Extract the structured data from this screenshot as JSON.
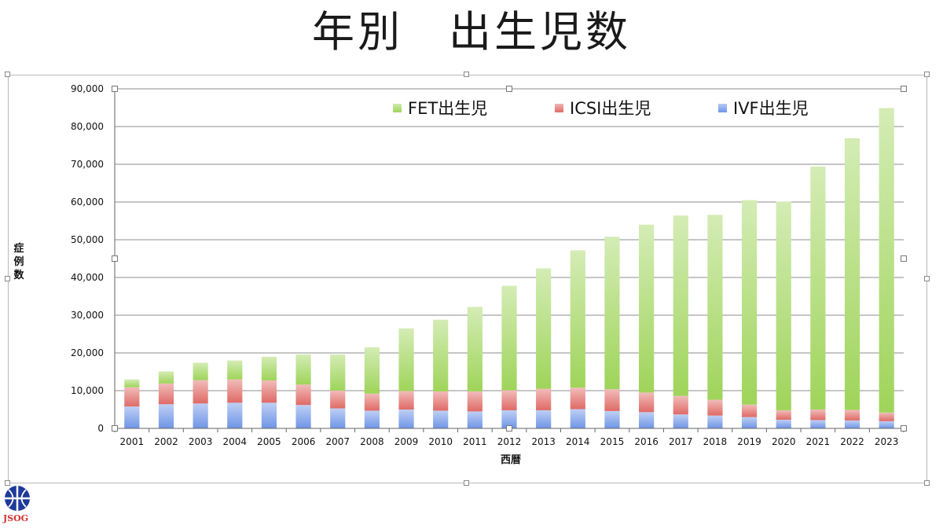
{
  "slide": {
    "title": "年別　出生児数"
  },
  "logo": {
    "text": "JSOG",
    "text_color": "#d32f2f",
    "mark_color": "#1e3a9a"
  },
  "chart_data": {
    "type": "bar",
    "stacked": true,
    "title": "",
    "xlabel": "西暦",
    "ylabel": "症例数",
    "ylim": [
      0,
      90000
    ],
    "yticks": [
      "0",
      "10,000",
      "20,000",
      "30,000",
      "40,000",
      "50,000",
      "60,000",
      "70,000",
      "80,000",
      "90,000"
    ],
    "grid": true,
    "legend_position": "top",
    "categories": [
      "2001",
      "2002",
      "2003",
      "2004",
      "2005",
      "2006",
      "2007",
      "2008",
      "2009",
      "2010",
      "2011",
      "2012",
      "2013",
      "2014",
      "2015",
      "2016",
      "2017",
      "2018",
      "2019",
      "2020",
      "2021",
      "2022",
      "2023"
    ],
    "series": [
      {
        "name": "IVF出生児",
        "color": "#6f95e6",
        "values": [
          5800,
          6400,
          6600,
          6800,
          6800,
          6200,
          5300,
          4700,
          5000,
          4700,
          4500,
          4800,
          4800,
          5100,
          4600,
          4300,
          3700,
          3400,
          3000,
          2300,
          2200,
          2100,
          1900
        ]
      },
      {
        "name": "ICSI出生児",
        "color": "#e06a66",
        "values": [
          5100,
          5500,
          6200,
          6200,
          5900,
          5400,
          4700,
          4500,
          4900,
          5100,
          5300,
          5300,
          5700,
          5700,
          5800,
          5200,
          4900,
          4200,
          3300,
          2500,
          2800,
          2800,
          2300
        ]
      },
      {
        "name": "FET出生児",
        "color": "#9fd45a",
        "values": [
          2100,
          3200,
          4600,
          5000,
          6300,
          8000,
          9600,
          12300,
          16600,
          19000,
          22400,
          27700,
          31900,
          36400,
          40400,
          44500,
          47800,
          49000,
          54200,
          55300,
          64400,
          72000,
          80700
        ]
      }
    ]
  }
}
